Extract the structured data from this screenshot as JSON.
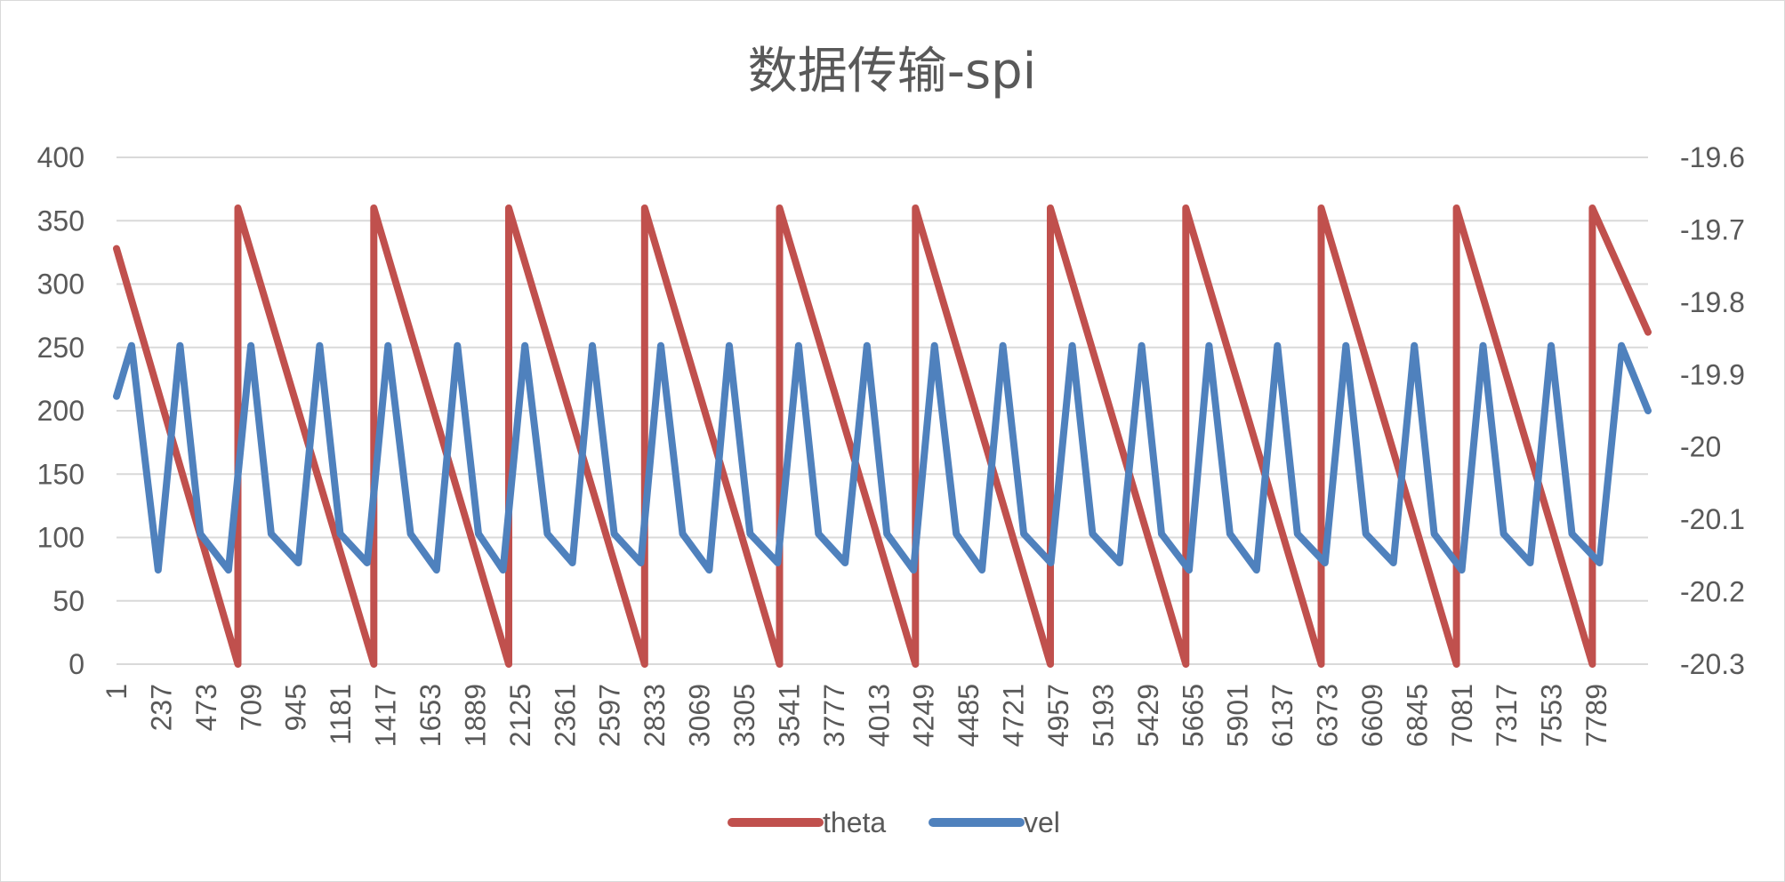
{
  "chart_data": {
    "type": "line",
    "title": "数据传输-spi",
    "xlabel": "",
    "ylabel": "",
    "x_tick_labels": [
      "1",
      "237",
      "473",
      "709",
      "945",
      "1181",
      "1417",
      "1653",
      "1889",
      "2125",
      "2361",
      "2597",
      "2833",
      "3069",
      "3305",
      "3541",
      "3777",
      "4013",
      "4249",
      "4485",
      "4721",
      "4957",
      "5193",
      "5429",
      "5665",
      "5901",
      "6137",
      "6373",
      "6609",
      "6845",
      "7081",
      "7317",
      "7553",
      "7789"
    ],
    "x_tick_step": 236,
    "xlim": [
      1,
      8060
    ],
    "ylim": [
      0,
      400
    ],
    "y_ticks": [
      0,
      50,
      100,
      150,
      200,
      250,
      300,
      350,
      400
    ],
    "y2lim": [
      -20.3,
      -19.6
    ],
    "y2_ticks": [
      -20.3,
      -20.2,
      -20.1,
      -20,
      -19.9,
      -19.8,
      -19.7,
      -19.6
    ],
    "grid": "horizontal",
    "legend_position": "bottom",
    "series": [
      {
        "name": "theta",
        "axis": "left",
        "color": "#c0504d",
        "x": [
          1,
          640,
          640,
          1355,
          1355,
          2065,
          2065,
          2780,
          2780,
          3490,
          3490,
          4205,
          4205,
          4915,
          4915,
          5628,
          5628,
          6340,
          6340,
          7052,
          7052,
          7767,
          7767,
          8060
        ],
        "y": [
          328,
          0,
          360,
          0,
          360,
          0,
          360,
          0,
          360,
          0,
          360,
          0,
          360,
          0,
          360,
          0,
          360,
          0,
          360,
          0,
          360,
          0,
          360,
          262
        ]
      },
      {
        "name": "vel",
        "axis": "right",
        "color": "#4f81bd",
        "x": [
          1,
          80,
          220,
          335,
          442,
          590,
          708,
          815,
          958,
          1070,
          1178,
          1320,
          1430,
          1548,
          1685,
          1795,
          1906,
          2035,
          2150,
          2268,
          2400,
          2505,
          2620,
          2760,
          2865,
          2980,
          3120,
          3225,
          3335,
          3480,
          3590,
          3695,
          3835,
          3950,
          4055,
          4195,
          4305,
          4420,
          4555,
          4665,
          4775,
          4918,
          5030,
          5137,
          5280,
          5395,
          5500,
          5645,
          5750,
          5860,
          6000,
          6110,
          6215,
          6360,
          6470,
          6575,
          6720,
          6830,
          6935,
          7080,
          7192,
          7300,
          7440,
          7550,
          7660,
          7805,
          7920,
          8060
        ],
        "y": [
          -19.93,
          -19.86,
          -20.17,
          -19.86,
          -20.12,
          -20.17,
          -19.86,
          -20.12,
          -20.16,
          -19.86,
          -20.12,
          -20.16,
          -19.86,
          -20.12,
          -20.17,
          -19.86,
          -20.12,
          -20.17,
          -19.86,
          -20.12,
          -20.16,
          -19.86,
          -20.12,
          -20.16,
          -19.86,
          -20.12,
          -20.17,
          -19.86,
          -20.12,
          -20.16,
          -19.86,
          -20.12,
          -20.16,
          -19.86,
          -20.12,
          -20.17,
          -19.86,
          -20.12,
          -20.17,
          -19.86,
          -20.12,
          -20.16,
          -19.86,
          -20.12,
          -20.16,
          -19.86,
          -20.12,
          -20.17,
          -19.86,
          -20.12,
          -20.17,
          -19.86,
          -20.12,
          -20.16,
          -19.86,
          -20.12,
          -20.16,
          -19.86,
          -20.12,
          -20.17,
          -19.86,
          -20.12,
          -20.16,
          -19.86,
          -20.12,
          -20.16,
          -19.86,
          -19.95
        ]
      }
    ]
  }
}
